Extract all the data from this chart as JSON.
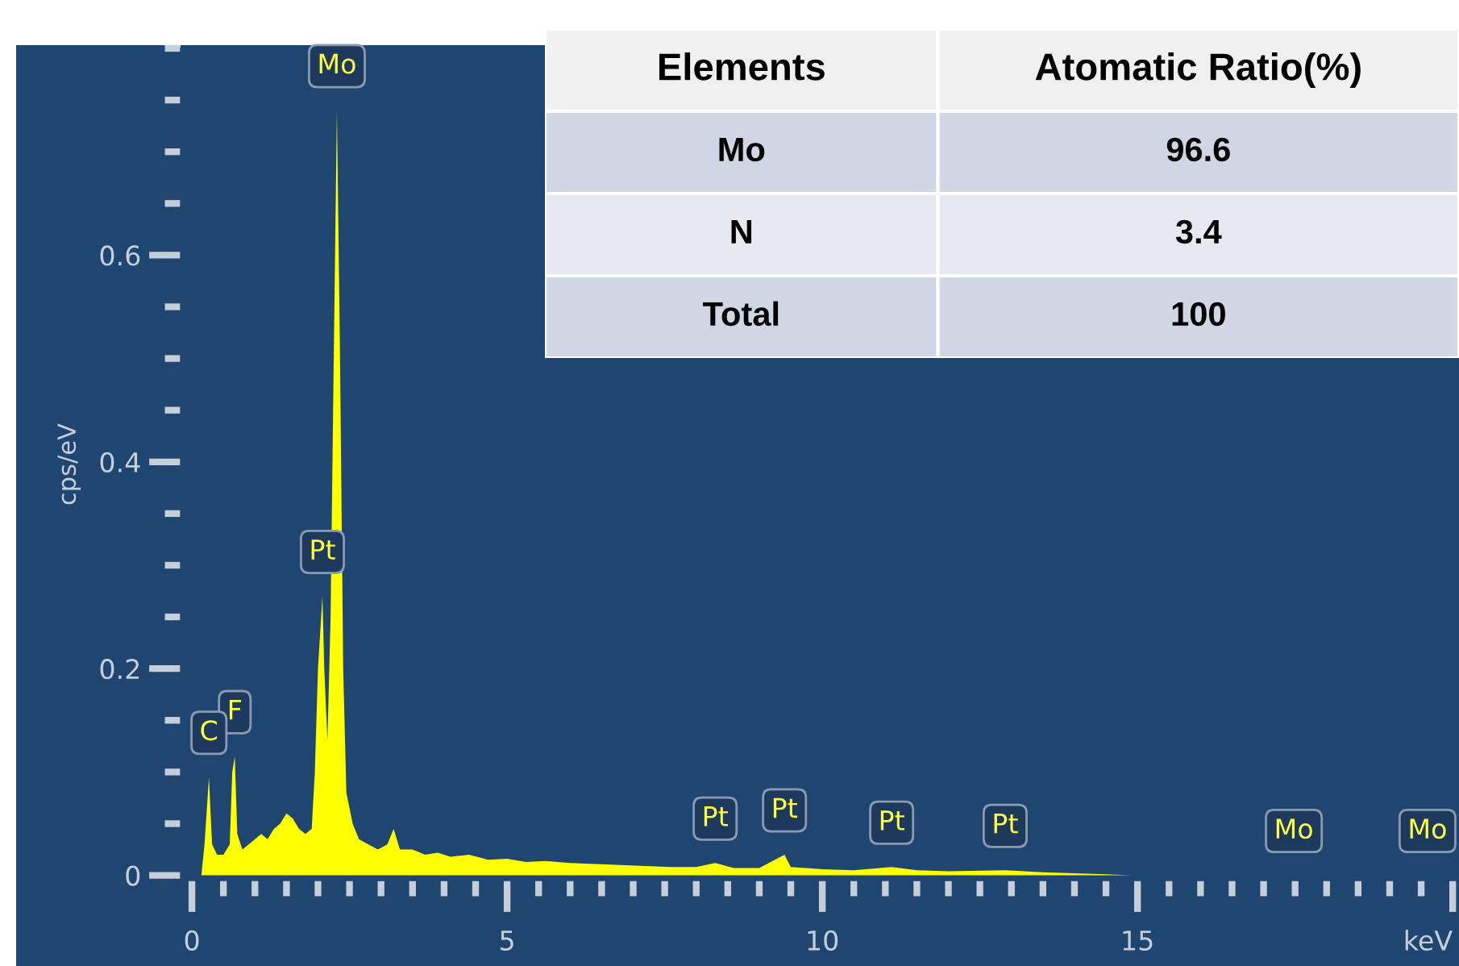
{
  "chart_data": [
    {
      "type": "area",
      "ylabel": "cps/eV",
      "xlim": [
        -0.18,
        20.1
      ],
      "ylim": [
        -0.005,
        0.8
      ],
      "xticks": [
        0,
        {
          "value": 0.5,
          "label": null
        },
        {
          "value": 1,
          "label": null
        },
        {
          "value": 1.5,
          "label": null
        },
        {
          "value": 2,
          "label": null
        },
        {
          "value": 2.5,
          "label": null
        },
        {
          "value": 3,
          "label": null
        },
        {
          "value": 3.5,
          "label": null
        },
        {
          "value": 4,
          "label": null
        },
        {
          "value": 4.5,
          "label": null
        },
        5,
        {
          "value": 5.5,
          "label": null
        },
        {
          "value": 6,
          "label": null
        },
        {
          "value": 6.5,
          "label": null
        },
        {
          "value": 7,
          "label": null
        },
        {
          "value": 7.5,
          "label": null
        },
        {
          "value": 8,
          "label": null
        },
        {
          "value": 8.5,
          "label": null
        },
        {
          "value": 9,
          "label": null
        },
        {
          "value": 9.5,
          "label": null
        },
        10,
        {
          "value": 10.5,
          "label": null
        },
        {
          "value": 11,
          "label": null
        },
        {
          "value": 11.5,
          "label": null
        },
        {
          "value": 12,
          "label": null
        },
        {
          "value": 12.5,
          "label": null
        },
        {
          "value": 13,
          "label": null
        },
        {
          "value": 13.5,
          "label": null
        },
        {
          "value": 14,
          "label": null
        },
        {
          "value": 14.5,
          "label": null
        },
        15,
        {
          "value": 15.5,
          "label": null
        },
        {
          "value": 16,
          "label": null
        },
        {
          "value": 16.5,
          "label": null
        },
        {
          "value": 17,
          "label": null
        },
        {
          "value": 17.5,
          "label": null
        },
        {
          "value": 18,
          "label": null
        },
        {
          "value": 18.5,
          "label": null
        },
        {
          "value": 19,
          "label": null
        },
        {
          "value": 19.5,
          "label": null
        },
        {
          "value": 20,
          "label": "keV"
        }
      ],
      "yticks": [
        0,
        {
          "value": 0.05,
          "label": null
        },
        {
          "value": 0.1,
          "label": null
        },
        {
          "value": 0.15,
          "label": null
        },
        0.2,
        {
          "value": 0.25,
          "label": null
        },
        {
          "value": 0.3,
          "label": null
        },
        {
          "value": 0.35,
          "label": null
        },
        0.4,
        {
          "value": 0.45,
          "label": null
        },
        {
          "value": 0.5,
          "label": null
        },
        {
          "value": 0.55,
          "label": null
        },
        0.6,
        {
          "value": 0.65,
          "label": null
        },
        {
          "value": 0.7,
          "label": null
        },
        {
          "value": 0.75,
          "label": null
        },
        {
          "value": 0.8,
          "label": null
        }
      ],
      "grid": false,
      "legend": false,
      "series": [
        {
          "color": "#ffff00",
          "x": [
            0.15,
            0.2,
            0.27,
            0.32,
            0.4,
            0.5,
            0.6,
            0.64,
            0.68,
            0.72,
            0.8,
            0.9,
            1.0,
            1.1,
            1.2,
            1.3,
            1.4,
            1.5,
            1.6,
            1.7,
            1.8,
            1.9,
            1.95,
            2.0,
            2.07,
            2.1,
            2.15,
            2.2,
            2.25,
            2.3,
            2.35,
            2.4,
            2.45,
            2.55,
            2.65,
            2.8,
            2.95,
            3.1,
            3.2,
            3.3,
            3.5,
            3.7,
            3.9,
            4.1,
            4.4,
            4.7,
            5.0,
            5.3,
            5.6,
            6.0,
            6.4,
            6.8,
            7.2,
            7.6,
            8.0,
            8.3,
            8.6,
            9.0,
            9.4,
            9.5,
            10.0,
            10.5,
            11.1,
            11.5,
            12.0,
            12.9,
            13.5,
            14.0,
            14.5,
            14.9,
            17.48,
            19.6
          ],
          "values": [
            0,
            0.03,
            0.095,
            0.03,
            0.02,
            0.02,
            0.03,
            0.1,
            0.115,
            0.04,
            0.025,
            0.03,
            0.035,
            0.04,
            0.035,
            0.045,
            0.05,
            0.06,
            0.055,
            0.045,
            0.04,
            0.045,
            0.1,
            0.2,
            0.27,
            0.2,
            0.13,
            0.25,
            0.5,
            0.74,
            0.5,
            0.2,
            0.08,
            0.05,
            0.035,
            0.03,
            0.025,
            0.03,
            0.045,
            0.025,
            0.025,
            0.02,
            0.022,
            0.018,
            0.02,
            0.015,
            0.016,
            0.013,
            0.014,
            0.012,
            0.011,
            0.01,
            0.009,
            0.008,
            0.008,
            0.012,
            0.007,
            0.007,
            0.02,
            0.008,
            0.006,
            0.005,
            0.008,
            0.005,
            0.004,
            0.005,
            0.003,
            0.002,
            0.001,
            0,
            0,
            0
          ]
        }
      ],
      "annotations": [
        {
          "text": "Mo",
          "x": 2.3,
          "y": 0.74
        },
        {
          "text": "Pt",
          "x": 2.07,
          "y": 0.27
        },
        {
          "text": "F",
          "x": 0.68,
          "y": 0.115
        },
        {
          "text": "C",
          "x": 0.27,
          "y": 0.095
        },
        {
          "text": "Pt",
          "x": 8.3,
          "y": 0.012
        },
        {
          "text": "Pt",
          "x": 9.4,
          "y": 0.02
        },
        {
          "text": "Pt",
          "x": 11.1,
          "y": 0.008
        },
        {
          "text": "Pt",
          "x": 12.9,
          "y": 0.005
        },
        {
          "text": "Mo",
          "x": 17.48,
          "y": 0
        },
        {
          "text": "Mo",
          "x": 19.6,
          "y": 0
        }
      ]
    },
    {
      "type": "other",
      "annotations": [
        "Elements",
        "Atomatic Ratio(%)",
        "Mo",
        "96.6",
        "N",
        "3.4",
        "Total",
        "100"
      ]
    }
  ]
}
